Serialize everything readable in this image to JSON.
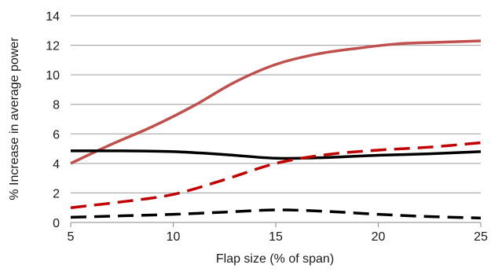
{
  "chart_data": {
    "type": "line",
    "title": "",
    "xlabel": "Flap size (% of span)",
    "ylabel": "% Increase in average power",
    "xlim": [
      5,
      25
    ],
    "ylim": [
      0,
      14
    ],
    "x_ticks": [
      "5",
      "10",
      "15",
      "20",
      "25"
    ],
    "y_ticks": [
      "0",
      "2",
      "4",
      "6",
      "8",
      "10",
      "12",
      "14"
    ],
    "grid": "horizontal",
    "legend": "none",
    "series": [
      {
        "color": "#c0504d",
        "dash": "solid",
        "points": [
          [
            5,
            4.0
          ],
          [
            7,
            5.3
          ],
          [
            9,
            6.5
          ],
          [
            11,
            7.9
          ],
          [
            13,
            9.5
          ],
          [
            15,
            10.7
          ],
          [
            17,
            11.4
          ],
          [
            19,
            11.8
          ],
          [
            21,
            12.1
          ],
          [
            23,
            12.2
          ],
          [
            25,
            12.3
          ]
        ]
      },
      {
        "color": "#000000",
        "dash": "solid",
        "points": [
          [
            5,
            4.85
          ],
          [
            7.5,
            4.85
          ],
          [
            10,
            4.8
          ],
          [
            12.5,
            4.6
          ],
          [
            15,
            4.35
          ],
          [
            17.5,
            4.4
          ],
          [
            20,
            4.55
          ],
          [
            22.5,
            4.65
          ],
          [
            25,
            4.8
          ]
        ]
      },
      {
        "color": "#c00000",
        "dash": "dashed",
        "points": [
          [
            5,
            1.0
          ],
          [
            7.5,
            1.4
          ],
          [
            10,
            1.9
          ],
          [
            12.5,
            2.9
          ],
          [
            15,
            4.0
          ],
          [
            17.5,
            4.6
          ],
          [
            20,
            4.9
          ],
          [
            22.5,
            5.1
          ],
          [
            25,
            5.4
          ]
        ]
      },
      {
        "color": "#000000",
        "dash": "dashed",
        "points": [
          [
            5,
            0.35
          ],
          [
            7.5,
            0.45
          ],
          [
            10,
            0.55
          ],
          [
            12.5,
            0.7
          ],
          [
            15,
            0.85
          ],
          [
            17.5,
            0.75
          ],
          [
            20,
            0.55
          ],
          [
            22.5,
            0.4
          ],
          [
            25,
            0.3
          ]
        ]
      }
    ]
  }
}
